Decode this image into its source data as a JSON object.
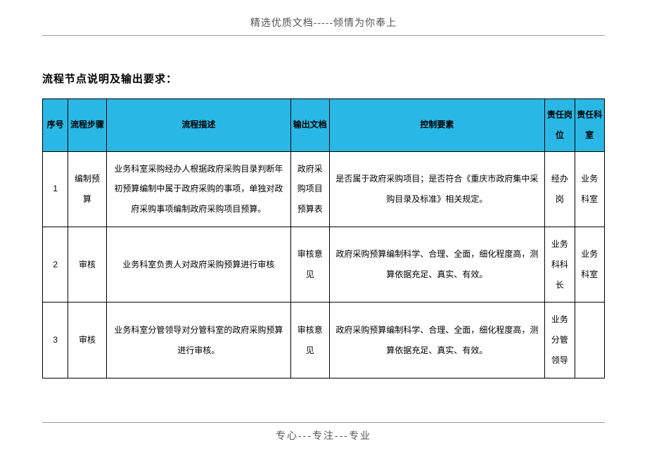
{
  "header": {
    "text": "精选优质文档-----倾情为你奉上"
  },
  "footer": {
    "text": "专心---专注---专业"
  },
  "section_title": "流程节点说明及输出要求：",
  "table": {
    "header_bg": "#29b8e6",
    "border_color": "#000000",
    "columns": {
      "seq": "序号",
      "step": "流程步骤",
      "desc": "流程描述",
      "output": "输出文档",
      "control": "控制要素",
      "role": "责任岗位",
      "dept": "责任科室"
    },
    "rows": [
      {
        "seq": "1",
        "step": "编制预算",
        "desc": "业务科室采购经办人根据政府采购目录判断年初预算编制中属于政府采购的事项，单独对政府采购事项编制政府采购项目预算。",
        "output": "政府采购项目预算表",
        "control": "是否属于政府采购项目；是否符合《重庆市政府集中采购目录及标准》相关规定。",
        "role": "经办岗",
        "dept": "业务科室"
      },
      {
        "seq": "2",
        "step": "审核",
        "desc": "业务科室负责人对政府采购预算进行审核",
        "output": "审核意见",
        "control": "政府采购预算编制科学、合理、全面，细化程度高，测算依据充足、真实、有效。",
        "role": "业务科科长",
        "dept": "业务科室"
      },
      {
        "seq": "3",
        "step": "审核",
        "desc": "业务科室分管领导对分管科室的政府采购预算进行审核。",
        "output": "审核意见",
        "control": "政府采购预算编制科学、合理、全面，细化程度高，测算依据充足、真实、有效。",
        "role": "业务分管领导",
        "dept": ""
      }
    ]
  }
}
